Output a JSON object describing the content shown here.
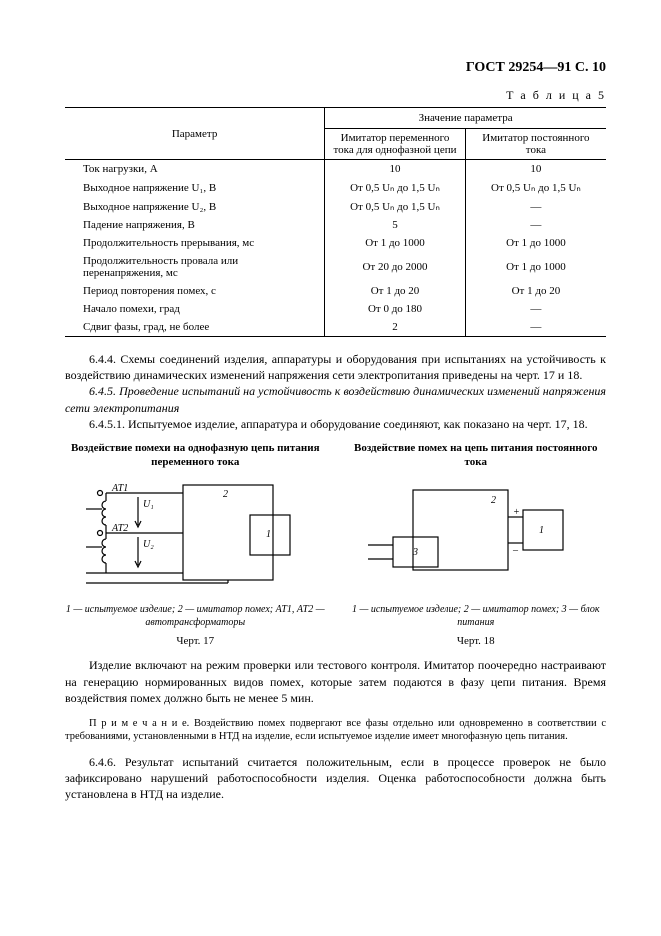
{
  "header": "ГОСТ 29254—91 С. 10",
  "table": {
    "caption": "Т а б л и ц а  5",
    "group_header": "Значение параметра",
    "col_param": "Параметр",
    "col_ac": "Имитатор переменного тока для однофазной цепи",
    "col_dc": "Имитатор постоянного тока",
    "rows": [
      {
        "p": "Ток нагрузки, А",
        "ac": "10",
        "dc": "10"
      },
      {
        "p": "Выходное напряжение U₁, В",
        "ac": "От 0,5 Uₙ до 1,5 Uₙ",
        "dc": "От 0,5 Uₙ до 1,5 Uₙ"
      },
      {
        "p": "Выходное напряжение U₂, В",
        "ac": "От 0,5 Uₙ до 1,5 Uₙ",
        "dc": "—"
      },
      {
        "p": "Падение напряжения, В",
        "ac": "5",
        "dc": "—"
      },
      {
        "p": "Продолжительность прерывания, мс",
        "ac": "От 1 до 1000",
        "dc": "От 1 до 1000"
      },
      {
        "p": "Продолжительность провала или перенапряжения, мс",
        "ac": "От 20 до 2000",
        "dc": "От 1 до 1000"
      },
      {
        "p": "Период повторения помех, с",
        "ac": "От 1 до 20",
        "dc": "От 1 до 20"
      },
      {
        "p": "Начало помехи, град",
        "ac": "От 0 до 180",
        "dc": "—"
      },
      {
        "p": "Сдвиг фазы, град, не более",
        "ac": "2",
        "dc": "—"
      }
    ]
  },
  "body": {
    "p644": "6.4.4. Схемы соединений изделия, аппаратуры и оборудования при испытаниях на устойчивость к воздействию динамических изменений напряжения сети электропитания приведены на черт. 17 и 18.",
    "p645": "6.4.5. Проведение испытаний на устойчивость к воздействию динамических изменений напряжения сети электропитания",
    "p6451": "6.4.5.1. Испытуемое изделие, аппаратура и оборудование соединяют, как показано на черт. 17, 18.",
    "after_fig1": "Изделие включают на режим проверки или тестового контроля. Имитатор поочередно настраивают на генерацию нормированных видов помех, которые затем подаются в фазу цепи питания. Время воздействия помех должно быть не менее 5 мин.",
    "note": "П р и м е ч а н и е. Воздействию помех подвергают все фазы отдельно или одновременно в соответствии с требованиями, установленными в НТД на изделие, если испытуемое изделие имеет многофазную цепь питания.",
    "p646": "6.4.6. Результат испытаний считается положительным, если в процессе проверок не было зафиксировано нарушений работоспособности изделия. Оценка работоспособности должна быть установлена в НТД на изделие."
  },
  "figs": {
    "left": {
      "title": "Воздействие помехи на однофазную цепь питания переменного тока",
      "labels": {
        "at1": "АТ1",
        "at2": "АТ2",
        "u1": "U₁",
        "u2": "U₂",
        "n1": "1",
        "n2": "2"
      },
      "caption": "1 — испытуемое изделие; 2 — имитатор помех; АТ1, АТ2 — автотрансформаторы",
      "num": "Черт. 17"
    },
    "right": {
      "title": "Воздействие помех на цепь питания постоянного тока",
      "labels": {
        "n1": "1",
        "n2": "2",
        "n3": "3",
        "plus": "+",
        "minus": "–"
      },
      "caption": "1 — испытуемое изделие; 2 — имитатор помех; 3 — блок питания",
      "num": "Черт. 18"
    }
  }
}
